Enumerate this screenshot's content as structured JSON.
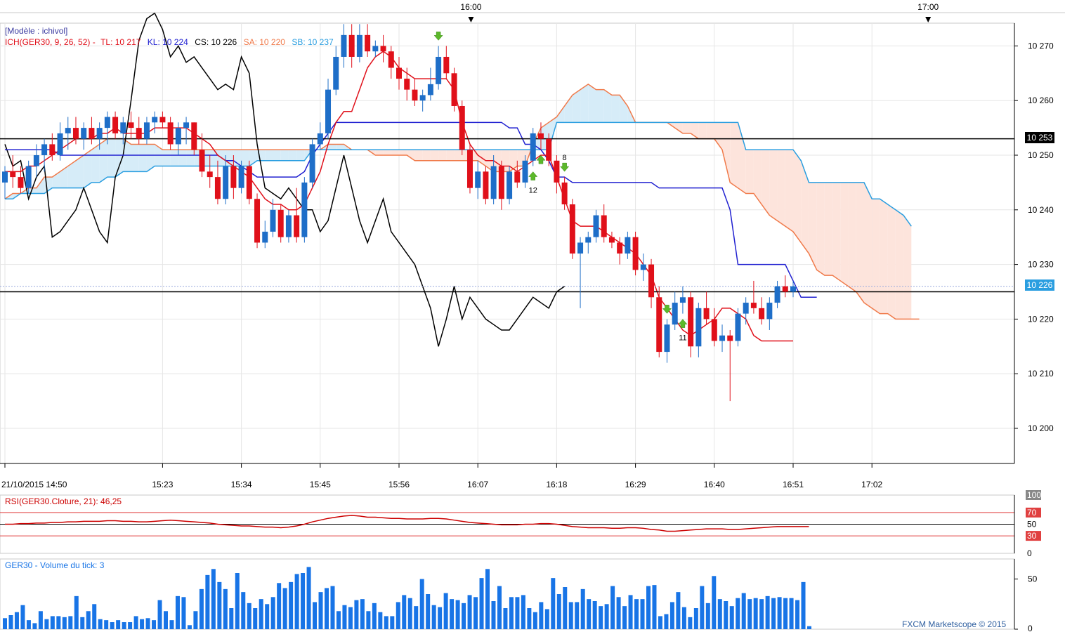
{
  "header_times": [
    {
      "label": "16:00",
      "index": 52
    },
    {
      "label": "17:00",
      "index": 110
    }
  ],
  "legend": {
    "model": "[Modèle : ichivol]",
    "ich": "ICH(GER30, 9, 26, 52) -",
    "tl": "TL: 10 217",
    "kl": "KL: 10 224",
    "cs": "CS: 10 226",
    "sa": "SA: 10 220",
    "sb": "SB: 10 237"
  },
  "price_labels": {
    "line_upper": "10 253",
    "current": "10 226"
  },
  "rsi_legend": "RSI(GER30.Cloture, 21): 46,25",
  "volume_legend": "GER30 - Volume du tick: 3",
  "copyright": "FXCM Marketscope © 2015",
  "colors": {
    "up": "#1e6ec8",
    "down": "#e0101a",
    "tenkan": "#e0101a",
    "kijun": "#2020d0",
    "chikou": "#000000",
    "senkou_a": "#f07a4a",
    "senkou_b": "#2a9ee0",
    "cloud_bull": "#d6ecf8",
    "cloud_bear": "#fde4dc",
    "signal": "#5cb82a",
    "rsi": "#cc0000",
    "volume": "#1874e6"
  },
  "signals": [
    {
      "index": 67,
      "dir": "up",
      "label": "12"
    },
    {
      "index": 68,
      "dir": "up",
      "label": ""
    },
    {
      "index": 71,
      "dir": "down",
      "label": "8"
    },
    {
      "index": 55,
      "dir": "down",
      "label": ""
    },
    {
      "index": 84,
      "dir": "down",
      "label": ""
    },
    {
      "index": 86,
      "dir": "up",
      "label": "11"
    }
  ],
  "chart_data": {
    "type": "candlestick",
    "price_range": [
      10193,
      10278
    ],
    "xaxis_labels": [
      {
        "label": "21/10/2015 14:50",
        "index": 0
      },
      {
        "label": "15:23",
        "index": 20
      },
      {
        "label": "15:34",
        "index": 30
      },
      {
        "label": "15:45",
        "index": 40
      },
      {
        "label": "15:56",
        "index": 50
      },
      {
        "label": "16:07",
        "index": 60
      },
      {
        "label": "16:18",
        "index": 70
      },
      {
        "label": "16:29",
        "index": 80
      },
      {
        "label": "16:40",
        "index": 90
      },
      {
        "label": "16:51",
        "index": 100
      },
      {
        "label": "17:02",
        "index": 110
      }
    ],
    "yticks": [
      10270,
      10260,
      10250,
      10240,
      10230,
      10220,
      10210,
      10200
    ],
    "horizontal_lines": [
      10253,
      10225
    ],
    "current_price": 10226,
    "ohlc": [
      [
        10245,
        10248,
        10242,
        10247
      ],
      [
        10247,
        10250,
        10244,
        10246
      ],
      [
        10246,
        10248,
        10243,
        10244
      ],
      [
        10244,
        10249,
        10243,
        10248
      ],
      [
        10248,
        10252,
        10246,
        10250
      ],
      [
        10250,
        10253,
        10247,
        10252
      ],
      [
        10252,
        10254,
        10249,
        10250
      ],
      [
        10250,
        10256,
        10249,
        10254
      ],
      [
        10254,
        10257,
        10251,
        10255
      ],
      [
        10255,
        10257,
        10252,
        10253
      ],
      [
        10253,
        10256,
        10251,
        10255
      ],
      [
        10255,
        10257,
        10252,
        10253
      ],
      [
        10253,
        10256,
        10251,
        10255
      ],
      [
        10255,
        10258,
        10252,
        10257
      ],
      [
        10257,
        10258,
        10253,
        10254
      ],
      [
        10254,
        10257,
        10252,
        10256
      ],
      [
        10256,
        10258,
        10253,
        10255
      ],
      [
        10255,
        10257,
        10252,
        10253
      ],
      [
        10253,
        10257,
        10252,
        10256
      ],
      [
        10256,
        10258,
        10254,
        10257
      ],
      [
        10257,
        10258,
        10255,
        10256
      ],
      [
        10256,
        10257,
        10251,
        10252
      ],
      [
        10252,
        10256,
        10250,
        10255
      ],
      [
        10255,
        10257,
        10252,
        10256
      ],
      [
        10256,
        10256,
        10250,
        10251
      ],
      [
        10251,
        10254,
        10246,
        10247
      ],
      [
        10247,
        10250,
        10244,
        10246
      ],
      [
        10246,
        10249,
        10241,
        10242
      ],
      [
        10242,
        10250,
        10241,
        10248
      ],
      [
        10248,
        10250,
        10242,
        10244
      ],
      [
        10244,
        10249,
        10243,
        10248
      ],
      [
        10248,
        10249,
        10241,
        10242
      ],
      [
        10242,
        10243,
        10233,
        10234
      ],
      [
        10234,
        10238,
        10233,
        10236
      ],
      [
        10236,
        10242,
        10235,
        10240
      ],
      [
        10240,
        10241,
        10234,
        10235
      ],
      [
        10235,
        10240,
        10234,
        10239
      ],
      [
        10239,
        10244,
        10234,
        10235
      ],
      [
        10235,
        10246,
        10234,
        10245
      ],
      [
        10245,
        10253,
        10244,
        10252
      ],
      [
        10252,
        10256,
        10251,
        10254
      ],
      [
        10254,
        10264,
        10253,
        10262
      ],
      [
        10262,
        10270,
        10261,
        10268
      ],
      [
        10268,
        10274,
        10266,
        10272
      ],
      [
        10272,
        10274,
        10266,
        10268
      ],
      [
        10268,
        10274,
        10267,
        10272
      ],
      [
        10272,
        10274,
        10268,
        10269
      ],
      [
        10269,
        10271,
        10268,
        10270
      ],
      [
        10270,
        10272,
        10267,
        10269
      ],
      [
        10269,
        10270,
        10264,
        10266
      ],
      [
        10266,
        10268,
        10262,
        10264
      ],
      [
        10264,
        10266,
        10260,
        10262
      ],
      [
        10262,
        10264,
        10259,
        10260
      ],
      [
        10260,
        10262,
        10258,
        10261
      ],
      [
        10261,
        10266,
        10260,
        10263
      ],
      [
        10263,
        10270,
        10262,
        10268
      ],
      [
        10268,
        10270,
        10264,
        10265
      ],
      [
        10265,
        10266,
        10258,
        10259
      ],
      [
        10259,
        10260,
        10250,
        10251
      ],
      [
        10251,
        10252,
        10243,
        10244
      ],
      [
        10244,
        10249,
        10242,
        10247
      ],
      [
        10247,
        10248,
        10241,
        10242
      ],
      [
        10242,
        10250,
        10241,
        10248
      ],
      [
        10248,
        10249,
        10240,
        10242
      ],
      [
        10242,
        10248,
        10241,
        10247
      ],
      [
        10247,
        10249,
        10244,
        10245
      ],
      [
        10245,
        10250,
        10244,
        10249
      ],
      [
        10249,
        10255,
        10248,
        10254
      ],
      [
        10254,
        10256,
        10251,
        10253
      ],
      [
        10253,
        10254,
        10248,
        10249
      ]
    ],
    "ohlc_tail": [
      [
        10249,
        10250,
        10243,
        10245
      ],
      [
        10245,
        10246,
        10240,
        10241
      ],
      [
        10241,
        10242,
        10231,
        10232
      ],
      [
        10232,
        10235,
        10222,
        10234
      ],
      [
        10234,
        10236,
        10232,
        10235
      ],
      [
        10235,
        10240,
        10234,
        10239
      ],
      [
        10239,
        10241,
        10234,
        10235
      ],
      [
        10235,
        10236,
        10233,
        10234
      ],
      [
        10234,
        10235,
        10230,
        10232
      ],
      [
        10232,
        10236,
        10231,
        10235
      ],
      [
        10235,
        10236,
        10228,
        10229
      ],
      [
        10229,
        10232,
        10227,
        10230
      ],
      [
        10230,
        10231,
        10222,
        10224
      ],
      [
        10224,
        10226,
        10213,
        10214
      ],
      [
        10214,
        10220,
        10212,
        10219
      ],
      [
        10219,
        10225,
        10218,
        10223
      ],
      [
        10223,
        10226,
        10221,
        10224
      ],
      [
        10224,
        10225,
        10213,
        10215
      ],
      [
        10215,
        10223,
        10213,
        10222
      ],
      [
        10222,
        10225,
        10219,
        10220
      ],
      [
        10220,
        10222,
        10215,
        10216
      ],
      [
        10216,
        10219,
        10214,
        10217
      ],
      [
        10217,
        10218,
        10205,
        10216
      ],
      [
        10216,
        10222,
        10215,
        10221
      ],
      [
        10221,
        10224,
        10219,
        10223
      ],
      [
        10223,
        10227,
        10221,
        10222
      ],
      [
        10222,
        10224,
        10219,
        10220
      ],
      [
        10220,
        10224,
        10218,
        10223
      ],
      [
        10223,
        10227,
        10222,
        10226
      ],
      [
        10226,
        10228,
        10224,
        10225
      ],
      [
        10225,
        10227,
        10224,
        10226
      ]
    ],
    "tenkan": [
      10247,
      10247,
      10247,
      10248,
      10248,
      10249,
      10250,
      10251,
      10252,
      10253,
      10253,
      10253,
      10254,
      10254,
      10255,
      10254,
      10254,
      10254,
      10254,
      10255,
      10255,
      10255,
      10255,
      10255,
      10254,
      10253,
      10252,
      10250,
      10249,
      10248,
      10247,
      10246,
      10244,
      10242,
      10241,
      10241,
      10240,
      10240,
      10241,
      10244,
      10247,
      10252,
      10256,
      10258,
      10258,
      10262,
      10266,
      10268,
      10269,
      10268,
      10266,
      10265,
      10264,
      10264,
      10264,
      10264,
      10264,
      10262,
      10256,
      10252,
      10250,
      10249,
      10249,
      10248,
      10248,
      10247,
      10248,
      10249,
      10250,
      10250,
      10246,
      10242,
      10238,
      10237,
      10237,
      10237,
      10236,
      10235,
      10234,
      10233,
      10232,
      10230,
      10228,
      10224,
      10222,
      10220,
      10218,
      10217,
      10218,
      10219,
      10220,
      10222,
      10222,
      10221,
      10220,
      10217,
      10216,
      10216,
      10216,
      10216,
      10216
    ],
    "kijun": [
      10251,
      10251,
      10251,
      10251,
      10251,
      10251,
      10251,
      10250,
      10250,
      10250,
      10250,
      10250,
      10250,
      10250,
      10250,
      10250,
      10250,
      10250,
      10250,
      10250,
      10250,
      10250,
      10250,
      10250,
      10250,
      10250,
      10250,
      10250,
      10249,
      10249,
      10248,
      10247,
      10246,
      10246,
      10246,
      10246,
      10246,
      10246,
      10247,
      10250,
      10252,
      10254,
      10256,
      10256,
      10256,
      10256,
      10256,
      10256,
      10256,
      10256,
      10256,
      10256,
      10256,
      10256,
      10256,
      10256,
      10256,
      10256,
      10256,
      10256,
      10256,
      10256,
      10256,
      10256,
      10255,
      10255,
      10252,
      10252,
      10251,
      10249,
      10246,
      10246,
      10245,
      10245,
      10245,
      10245,
      10245,
      10245,
      10245,
      10245,
      10245,
      10245,
      10245,
      10244,
      10244,
      10244,
      10244,
      10244,
      10244,
      10244,
      10244,
      10244,
      10240,
      10230,
      10230,
      10230,
      10230,
      10230,
      10230,
      10230,
      10227,
      10224,
      10224,
      10224
    ],
    "chikou": [
      10252,
      10248,
      10249,
      10242,
      10246,
      10248,
      10235,
      10236,
      10238,
      10240,
      10244,
      10240,
      10236,
      10234,
      10246,
      10250,
      10260,
      10271,
      10275,
      10276,
      10273,
      10268,
      10270,
      10267,
      10268,
      10266,
      10264,
      10262,
      10263,
      10262,
      10268,
      10265,
      10252,
      10244,
      10243,
      10242,
      10244,
      10242,
      10240,
      10240,
      10236,
      10238,
      10244,
      10250,
      10244,
      10238,
      10234,
      10238,
      10242,
      10236,
      10234,
      10232,
      10230,
      10226,
      10222,
      10215,
      10220,
      10226,
      10220,
      10224,
      10222,
      10220,
      10219,
      10218,
      10218,
      10220,
      10222,
      10224,
      10223,
      10222,
      10225,
      10226
    ],
    "senkou_a": [
      10242,
      10243,
      10243,
      10244,
      10244,
      10246,
      10246,
      10247,
      10248,
      10249,
      10250,
      10251,
      10252,
      10253,
      10253,
      10253,
      10252,
      10252,
      10252,
      10252,
      10251,
      10251,
      10251,
      10251,
      10251,
      10251,
      10251,
      10251,
      10251,
      10251,
      10251,
      10251,
      10251,
      10251,
      10251,
      10251,
      10251,
      10251,
      10251,
      10251,
      10251,
      10252,
      10252,
      10252,
      10251,
      10251,
      10251,
      10250,
      10250,
      10250,
      10250,
      10250,
      10249,
      10249,
      10249,
      10249,
      10249,
      10249,
      10249,
      10249,
      10249,
      10248,
      10247,
      10247,
      10247,
      10248,
      10248,
      10252,
      10255,
      10256,
      10257,
      10259,
      10261,
      10262,
      10263,
      10262,
      10262,
      10261,
      10261,
      10259,
      10256,
      10256,
      10256,
      10256,
      10256,
      10255,
      10254,
      10254,
      10253,
      10253,
      10253,
      10251,
      10245,
      10244,
      10243,
      10243,
      10241,
      10239,
      10238,
      10237,
      10236,
      10234,
      10232,
      10229,
      10228,
      10228,
      10227,
      10226,
      10225,
      10223,
      10222,
      10221,
      10221,
      10220,
      10220,
      10220,
      10220
    ],
    "senkou_b": [
      10242,
      10242,
      10243,
      10243,
      10243,
      10243,
      10244,
      10244,
      10244,
      10244,
      10244,
      10245,
      10245,
      10246,
      10246,
      10247,
      10247,
      10247,
      10247,
      10248,
      10248,
      10248,
      10248,
      10248,
      10248,
      10248,
      10248,
      10248,
      10248,
      10248,
      10248,
      10248,
      10249,
      10249,
      10249,
      10249,
      10249,
      10249,
      10249,
      10251,
      10251,
      10251,
      10251,
      10251,
      10251,
      10251,
      10251,
      10251,
      10251,
      10251,
      10251,
      10251,
      10251,
      10251,
      10251,
      10251,
      10251,
      10251,
      10251,
      10251,
      10251,
      10251,
      10251,
      10251,
      10251,
      10251,
      10251,
      10251,
      10251,
      10251,
      10256,
      10256,
      10256,
      10256,
      10256,
      10256,
      10256,
      10256,
      10256,
      10256,
      10256,
      10256,
      10256,
      10256,
      10256,
      10256,
      10256,
      10256,
      10256,
      10256,
      10256,
      10256,
      10256,
      10256,
      10251,
      10251,
      10251,
      10251,
      10251,
      10251,
      10251,
      10249,
      10245,
      10245,
      10245,
      10245,
      10245,
      10245,
      10245,
      10245,
      10242,
      10242,
      10241,
      10240,
      10239,
      10237
    ],
    "rsi": {
      "levels": [
        100,
        70,
        50,
        30,
        0
      ],
      "values": [
        50,
        50,
        51,
        51,
        52,
        52,
        53,
        53,
        54,
        54,
        55,
        55,
        55,
        56,
        56,
        55,
        55,
        54,
        54,
        55,
        56,
        57,
        56,
        55,
        54,
        53,
        52,
        50,
        49,
        48,
        47,
        47,
        46,
        45,
        45,
        44,
        45,
        47,
        50,
        54,
        57,
        60,
        62,
        64,
        65,
        64,
        62,
        62,
        61,
        60,
        60,
        59,
        59,
        59,
        60,
        60,
        59,
        57,
        55,
        53,
        52,
        51,
        50,
        49,
        49,
        49,
        50,
        50,
        51,
        51,
        50,
        48,
        46,
        45,
        44,
        44,
        44,
        43,
        43,
        44,
        44,
        43,
        41,
        40,
        38,
        38,
        39,
        40,
        41,
        42,
        42,
        42,
        41,
        41,
        42,
        43,
        44,
        45,
        46,
        46,
        46,
        46,
        46
      ]
    },
    "volume": {
      "ticks": [
        50,
        0
      ],
      "values": [
        11,
        14,
        17,
        24,
        9,
        6,
        18,
        10,
        13,
        13,
        12,
        13,
        33,
        12,
        18,
        25,
        10,
        9,
        7,
        9,
        7,
        7,
        13,
        10,
        11,
        9,
        29,
        18,
        9,
        33,
        32,
        4,
        18,
        40,
        54,
        60,
        47,
        40,
        21,
        56,
        37,
        26,
        21,
        30,
        25,
        32,
        46,
        41,
        47,
        55,
        56,
        62,
        27,
        37,
        41,
        43,
        18,
        24,
        22,
        29,
        30,
        18,
        26,
        17,
        13,
        13,
        27,
        34,
        31,
        23,
        50,
        35,
        24,
        22,
        36,
        30,
        29,
        26,
        34,
        32,
        51,
        60,
        28,
        43,
        21,
        32,
        32,
        34,
        21,
        17,
        27,
        20,
        51,
        35,
        42,
        27,
        27,
        40,
        30,
        28,
        23,
        25,
        43,
        32,
        23,
        34,
        30,
        30,
        43,
        44,
        13,
        15,
        27,
        37,
        22,
        12,
        21,
        43,
        26,
        53,
        30,
        28,
        23,
        31,
        36,
        30,
        31,
        30,
        33,
        31,
        32,
        31,
        31,
        29,
        47,
        3
      ]
    }
  }
}
